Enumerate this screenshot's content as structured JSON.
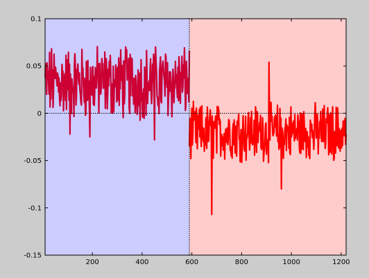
{
  "chart_data": {
    "type": "line",
    "title": "",
    "xlabel": "",
    "ylabel": "",
    "xlim": [
      10,
      1220
    ],
    "ylim": [
      -0.15,
      0.1
    ],
    "x_ticks": [
      200,
      400,
      600,
      800,
      1000,
      1200
    ],
    "y_ticks": [
      -0.15,
      -0.1,
      -0.05,
      0,
      0.05,
      0.1
    ],
    "y_tick_labels": [
      "-0.15",
      "-0.1",
      "-0.05",
      "0",
      "0.05",
      "0.1"
    ],
    "grid": false,
    "background": "#ffffff",
    "figure_background": "#cccccc",
    "reference_lines": [
      {
        "orientation": "horizontal",
        "value": 0,
        "style": "dotted",
        "color": "#000000"
      },
      {
        "orientation": "vertical",
        "value": 590,
        "style": "dotted",
        "color": "#000000"
      }
    ],
    "regions": [
      {
        "x_start": 10,
        "x_end": 590,
        "color": "#ccccff"
      },
      {
        "x_start": 590,
        "x_end": 1220,
        "color": "#ffcccc"
      }
    ],
    "series": [
      {
        "x_start": 10,
        "x_end": 590,
        "color": "#cc0033",
        "mean": 0.022,
        "typical_min": 0.0,
        "typical_max": 0.065,
        "extremes": [
          [
            55,
            0.09
          ],
          [
            110,
            -0.022
          ],
          [
            190,
            -0.025
          ],
          [
            450,
            -0.028
          ],
          [
            455,
            0.075
          ]
        ]
      },
      {
        "x_start": 590,
        "x_end": 1220,
        "color": "#ff0000",
        "mean": -0.018,
        "typical_min": -0.045,
        "typical_max": 0.005,
        "extremes": [
          [
            595,
            -0.06
          ],
          [
            680,
            -0.107
          ],
          [
            910,
            0.054
          ],
          [
            960,
            -0.08
          ],
          [
            1215,
            0.017
          ]
        ]
      }
    ]
  }
}
